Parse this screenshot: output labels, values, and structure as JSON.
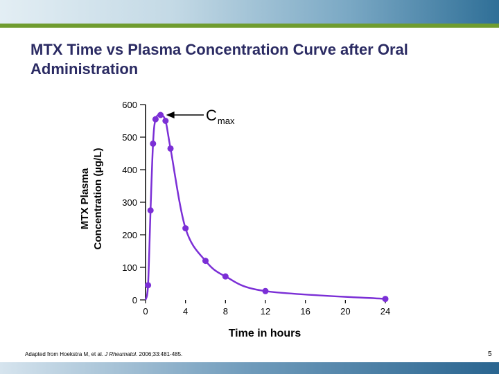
{
  "slide": {
    "title": "MTX Time vs Plasma Concentration Curve after Oral Administration",
    "source_prefix": "Adapted from Hoekstra M, et al. ",
    "source_journal": "J Rheumatol",
    "source_suffix": ". 2006;33:481-485.",
    "page_number": "5"
  },
  "chart_data": {
    "type": "line",
    "title": "",
    "xlabel": "Time in hours",
    "ylabel_line1": "MTX Plasma",
    "ylabel_line2": "Concentration (µg/L)",
    "xlim": [
      0,
      24
    ],
    "ylim": [
      0,
      600
    ],
    "x_ticks": [
      0,
      4,
      8,
      12,
      16,
      20,
      24
    ],
    "y_ticks": [
      0,
      100,
      200,
      300,
      400,
      500,
      600
    ],
    "grid": false,
    "legend": "none",
    "series_color": "#7b2fd6",
    "annotation": {
      "label": "C",
      "subscript": "max",
      "points_to": {
        "x": 1.5,
        "y": 568
      }
    },
    "series": [
      {
        "x": [
          0,
          0.25,
          0.5,
          0.75,
          1,
          1.5,
          2,
          2.5,
          4,
          6,
          8,
          12,
          24
        ],
        "y": [
          0,
          45,
          275,
          480,
          555,
          568,
          550,
          465,
          220,
          120,
          72,
          27,
          3
        ]
      }
    ]
  }
}
